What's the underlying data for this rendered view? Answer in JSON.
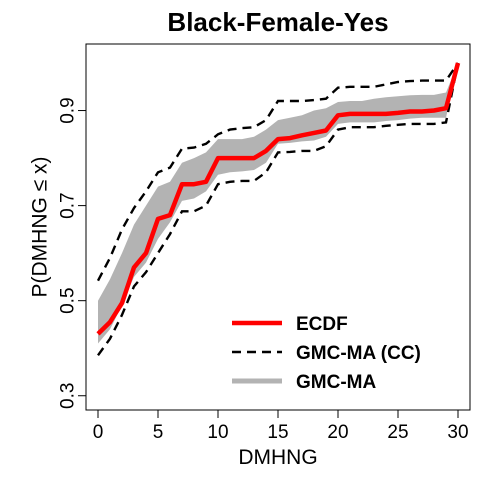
{
  "chart_data": {
    "type": "line",
    "title": "Black-Female-Yes",
    "xlabel": "DMHNG",
    "ylabel": "P(DMHNG ≤ x)",
    "xlim": [
      -1,
      31
    ],
    "ylim": [
      0.27,
      1.04
    ],
    "xticks": [
      0,
      5,
      10,
      15,
      20,
      25,
      30
    ],
    "yticks": [
      0.3,
      0.5,
      0.7,
      0.9
    ],
    "legend_position": "bottom-right",
    "series": [
      {
        "name": "ECDF",
        "style": "solid",
        "color": "#ff0000",
        "x": [
          0,
          1,
          2,
          3,
          4,
          5,
          6,
          7,
          8,
          9,
          10,
          11,
          12,
          13,
          14,
          15,
          16,
          17,
          18,
          19,
          20,
          21,
          22,
          23,
          24,
          25,
          26,
          27,
          28,
          29,
          30
        ],
        "y": [
          0.43,
          0.455,
          0.495,
          0.57,
          0.6,
          0.672,
          0.68,
          0.745,
          0.745,
          0.75,
          0.8,
          0.8,
          0.8,
          0.8,
          0.815,
          0.84,
          0.842,
          0.848,
          0.853,
          0.858,
          0.89,
          0.893,
          0.893,
          0.893,
          0.893,
          0.895,
          0.898,
          0.898,
          0.9,
          0.905,
          1.0
        ]
      },
      {
        "name": "GMC-MA (CC)",
        "style": "dashed",
        "color": "#000000",
        "x": [
          0,
          1,
          2,
          3,
          4,
          5,
          6,
          7,
          8,
          9,
          10,
          11,
          12,
          13,
          14,
          15,
          16,
          17,
          18,
          19,
          20,
          21,
          22,
          23,
          24,
          25,
          26,
          27,
          28,
          29,
          30
        ],
        "upper": [
          0.542,
          0.59,
          0.65,
          0.695,
          0.73,
          0.77,
          0.78,
          0.82,
          0.822,
          0.83,
          0.85,
          0.86,
          0.863,
          0.865,
          0.88,
          0.92,
          0.92,
          0.92,
          0.922,
          0.925,
          0.948,
          0.95,
          0.95,
          0.95,
          0.955,
          0.96,
          0.962,
          0.963,
          0.963,
          0.963,
          1.0
        ],
        "lower": [
          0.385,
          0.42,
          0.47,
          0.53,
          0.56,
          0.6,
          0.64,
          0.688,
          0.688,
          0.7,
          0.745,
          0.75,
          0.752,
          0.752,
          0.77,
          0.812,
          0.813,
          0.815,
          0.815,
          0.825,
          0.86,
          0.865,
          0.865,
          0.865,
          0.868,
          0.87,
          0.872,
          0.872,
          0.872,
          0.875,
          1.0
        ]
      },
      {
        "name": "GMC-MA",
        "style": "band",
        "color": "#b3b3b3",
        "x": [
          0,
          1,
          2,
          3,
          4,
          5,
          6,
          7,
          8,
          9,
          10,
          11,
          12,
          13,
          14,
          15,
          16,
          17,
          18,
          19,
          20,
          21,
          22,
          23,
          24,
          25,
          26,
          27,
          28,
          29,
          30
        ],
        "upper": [
          0.5,
          0.545,
          0.6,
          0.66,
          0.7,
          0.74,
          0.75,
          0.79,
          0.8,
          0.812,
          0.84,
          0.84,
          0.84,
          0.845,
          0.86,
          0.88,
          0.885,
          0.89,
          0.9,
          0.905,
          0.918,
          0.92,
          0.92,
          0.925,
          0.928,
          0.93,
          0.932,
          0.933,
          0.933,
          0.938,
          1.0
        ],
        "lower": [
          0.41,
          0.44,
          0.49,
          0.55,
          0.58,
          0.63,
          0.665,
          0.71,
          0.715,
          0.73,
          0.765,
          0.77,
          0.772,
          0.775,
          0.79,
          0.83,
          0.832,
          0.835,
          0.837,
          0.845,
          0.872,
          0.875,
          0.875,
          0.875,
          0.878,
          0.88,
          0.883,
          0.885,
          0.885,
          0.885,
          1.0
        ]
      }
    ]
  }
}
